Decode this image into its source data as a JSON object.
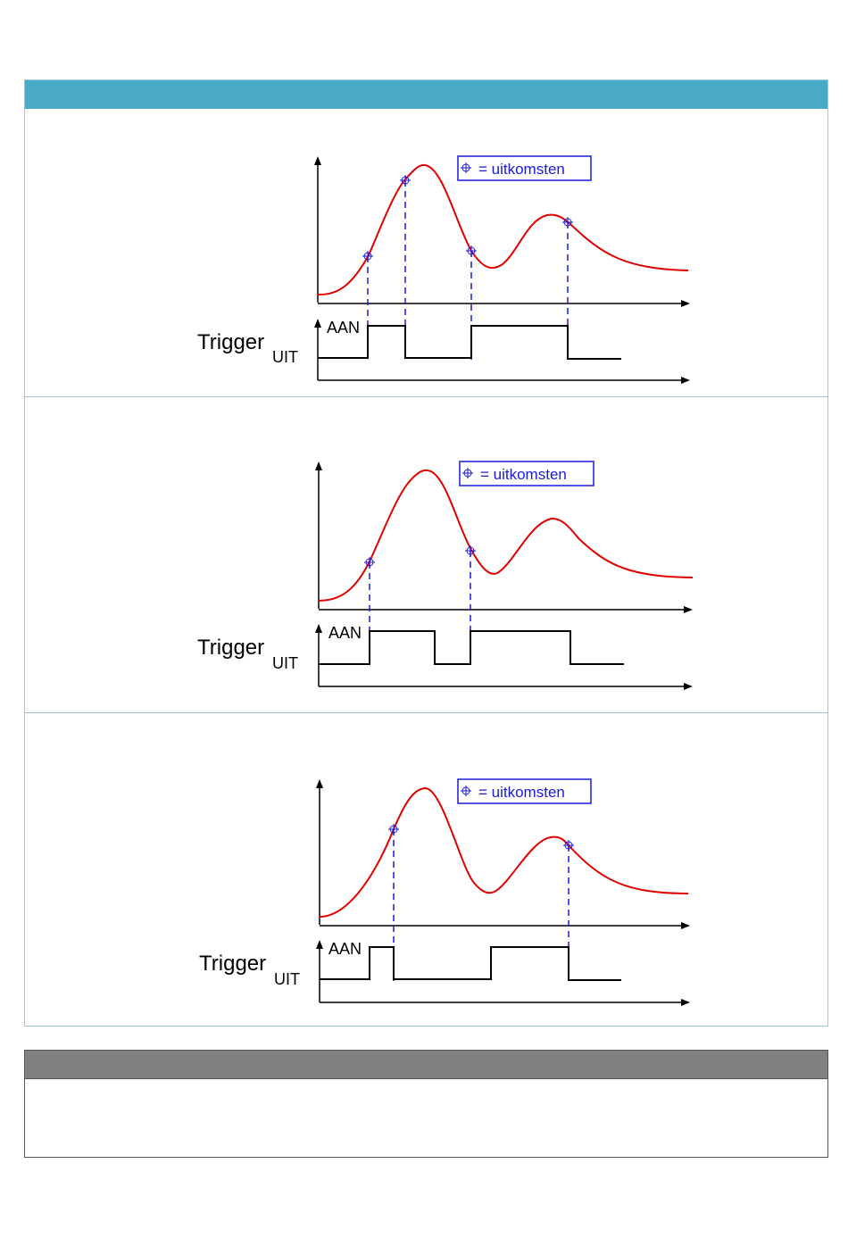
{
  "legend": {
    "label": "= uitkomsten",
    "symbol": "crosshair-circle"
  },
  "signal": {
    "name": "Trigger",
    "subscript": "UIT",
    "high_label": "AAN"
  },
  "colors": {
    "header": "#4aabc6",
    "curve": "#e00000",
    "marker": "#1a1adb",
    "note_header": "#808080"
  },
  "panels": [
    {
      "legend": "= uitkomsten",
      "trigger": "Trigger",
      "sub": "UIT",
      "aan": "AAN"
    },
    {
      "legend": "= uitkomsten",
      "trigger": "Trigger",
      "sub": "UIT",
      "aan": "AAN"
    },
    {
      "legend": "= uitkomsten",
      "trigger": "Trigger",
      "sub": "UIT",
      "aan": "AAN"
    }
  ]
}
